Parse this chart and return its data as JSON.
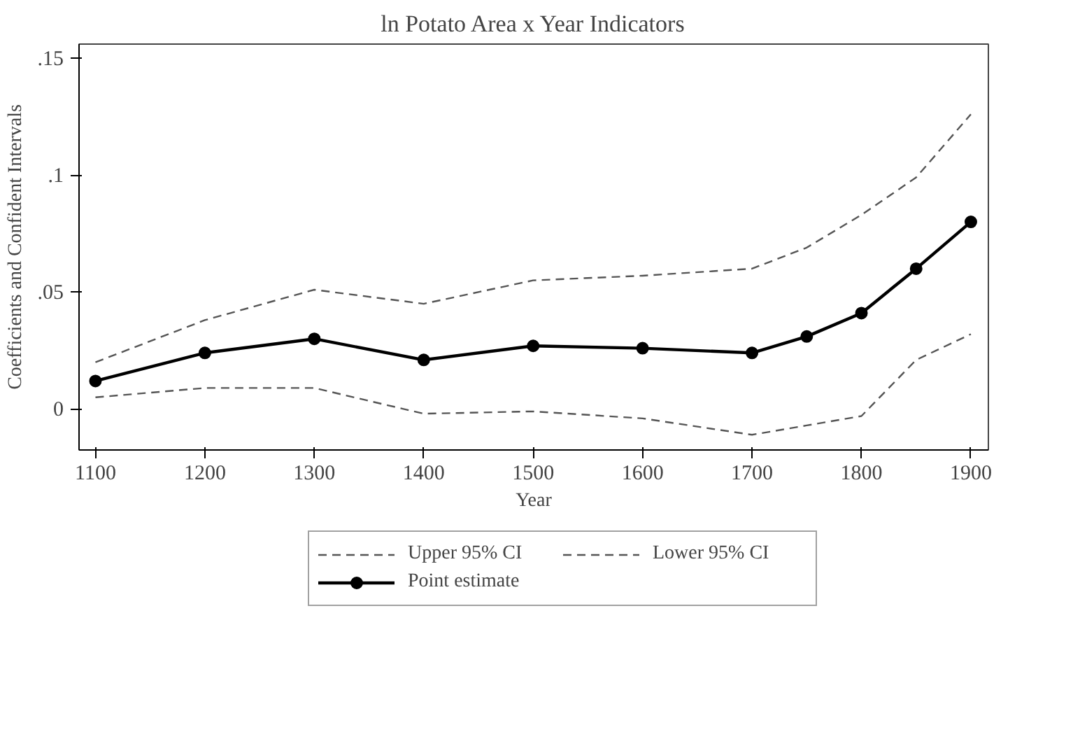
{
  "chart_data": {
    "type": "line",
    "title": "ln Potato Area x Year Indicators",
    "xlabel": "Year",
    "ylabel": "Coefficients and Confident Intervals",
    "x": [
      1100,
      1200,
      1300,
      1400,
      1500,
      1600,
      1700,
      1750,
      1800,
      1850,
      1900
    ],
    "series": [
      {
        "name": "Upper 95% CI",
        "color": "#555555",
        "line_style": "dashed",
        "marker": "none",
        "values": [
          0.02,
          0.038,
          0.051,
          0.045,
          0.055,
          0.057,
          0.06,
          0.069,
          0.083,
          0.099,
          0.126
        ]
      },
      {
        "name": "Lower 95% CI",
        "color": "#555555",
        "line_style": "dashed",
        "marker": "none",
        "values": [
          0.005,
          0.009,
          0.009,
          -0.002,
          -0.001,
          -0.004,
          -0.011,
          -0.007,
          -0.003,
          0.021,
          0.032
        ]
      },
      {
        "name": "Point estimate",
        "color": "#000000",
        "line_style": "solid",
        "marker": "circle",
        "values": [
          0.012,
          0.024,
          0.03,
          0.021,
          0.027,
          0.026,
          0.024,
          0.031,
          0.041,
          0.06,
          0.08
        ]
      }
    ],
    "xlim": [
      1085,
      1916
    ],
    "ylim": [
      -0.0175,
      0.156
    ],
    "xticks": [
      1100,
      1200,
      1300,
      1400,
      1500,
      1600,
      1700,
      1800,
      1900
    ],
    "yticks": [
      0,
      {
        "value": 0.05,
        "label": ".05"
      },
      {
        "value": 0.1,
        "label": ".1"
      },
      {
        "value": 0.15,
        "label": ".15"
      }
    ],
    "grid": false,
    "legend": "bottom"
  }
}
